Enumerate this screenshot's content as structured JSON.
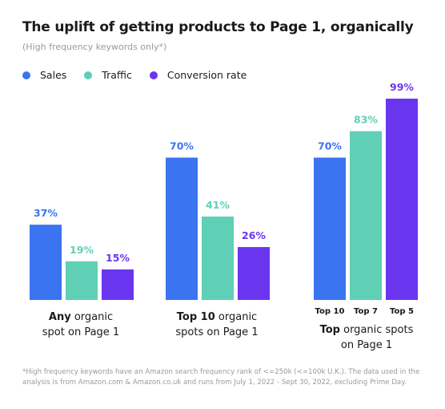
{
  "title": "The uplift of getting products to Page 1, organically",
  "subtitle": "(High frequency keywords only*)",
  "legend": [
    {
      "label": "Sales",
      "color": "#3b74f0"
    },
    {
      "label": "Traffic",
      "color": "#5fcfb5"
    },
    {
      "label": "Conversion rate",
      "color": "#6a35ef"
    }
  ],
  "groups": [
    {
      "bold": "Any",
      "rest1": " organic",
      "line2": "spot on Page 1"
    },
    {
      "bold": "Top 10",
      "rest1": " organic",
      "line2": "spots on Page 1"
    },
    {
      "bold": "Top",
      "rest1": " organic spots",
      "line2": "on Page 1"
    }
  ],
  "footnote": "*High frequency keywords have an Amazon search frequency rank of <=250k (<=100k U.K.). The data used in the analysis is from Amazon.com & Amazon.co.uk and runs from July 1,  2022 - Sept 30, 2022, excluding Prime Day.",
  "chart_data": {
    "type": "bar",
    "title": "The uplift of getting products to Page 1, organically",
    "ylim": [
      0,
      100
    ],
    "groups": [
      {
        "name": "Any organic spot on Page 1",
        "bars": [
          {
            "series": "Sales",
            "value": 37,
            "label": "37%",
            "color": "#3b74f0"
          },
          {
            "series": "Traffic",
            "value": 19,
            "label": "19%",
            "color": "#5fcfb5"
          },
          {
            "series": "Conversion rate",
            "value": 15,
            "label": "15%",
            "color": "#6a35ef"
          }
        ]
      },
      {
        "name": "Top 10 organic spots on Page 1",
        "bars": [
          {
            "series": "Sales",
            "value": 70,
            "label": "70%",
            "color": "#3b74f0"
          },
          {
            "series": "Traffic",
            "value": 41,
            "label": "41%",
            "color": "#5fcfb5"
          },
          {
            "series": "Conversion rate",
            "value": 26,
            "label": "26%",
            "color": "#6a35ef"
          }
        ]
      },
      {
        "name": "Top organic spots on Page 1",
        "bars": [
          {
            "series": "Top 10",
            "value": 70,
            "label": "70%",
            "color": "#3b74f0",
            "tick": "Top 10"
          },
          {
            "series": "Top 7",
            "value": 83,
            "label": "83%",
            "color": "#5fcfb5",
            "tick": "Top 7"
          },
          {
            "series": "Top 5",
            "value": 99,
            "label": "99%",
            "color": "#6a35ef",
            "tick": "Top 5"
          }
        ]
      }
    ]
  }
}
